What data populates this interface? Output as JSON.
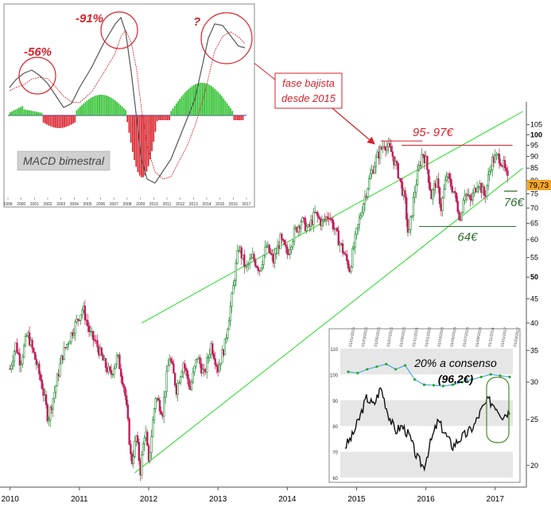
{
  "chart_data": [
    {
      "type": "candlestick",
      "title": "",
      "x_ticks": [
        "2010",
        "2011",
        "2012",
        "2013",
        "2014",
        "2015",
        "2016",
        "2017"
      ],
      "y_ticks": [
        "105",
        "100",
        "95",
        "90",
        "85",
        "80",
        "75",
        "70",
        "65",
        "60",
        "55",
        "50",
        "45",
        "40",
        "35",
        "30",
        "25",
        "20"
      ],
      "y_scale": "log",
      "ylim": [
        19,
        112
      ],
      "last_price_label": "79,73",
      "price_path": [
        [
          2010.0,
          32
        ],
        [
          2010.08,
          36
        ],
        [
          2010.15,
          33
        ],
        [
          2010.25,
          38
        ],
        [
          2010.35,
          34
        ],
        [
          2010.45,
          30
        ],
        [
          2010.55,
          25
        ],
        [
          2010.65,
          29
        ],
        [
          2010.75,
          34
        ],
        [
          2010.85,
          37
        ],
        [
          2010.95,
          40
        ],
        [
          2011.05,
          43
        ],
        [
          2011.15,
          38
        ],
        [
          2011.25,
          36
        ],
        [
          2011.35,
          33
        ],
        [
          2011.45,
          31
        ],
        [
          2011.55,
          34
        ],
        [
          2011.65,
          29
        ],
        [
          2011.75,
          20
        ],
        [
          2011.82,
          23
        ],
        [
          2011.88,
          19.5
        ],
        [
          2011.95,
          24
        ],
        [
          2012.0,
          20
        ],
        [
          2012.1,
          28
        ],
        [
          2012.2,
          26
        ],
        [
          2012.3,
          34
        ],
        [
          2012.4,
          29
        ],
        [
          2012.5,
          33
        ],
        [
          2012.6,
          29
        ],
        [
          2012.7,
          34
        ],
        [
          2012.8,
          31
        ],
        [
          2012.9,
          36
        ],
        [
          2013.0,
          32
        ],
        [
          2013.1,
          36
        ],
        [
          2013.2,
          45
        ],
        [
          2013.3,
          58
        ],
        [
          2013.4,
          52
        ],
        [
          2013.5,
          55
        ],
        [
          2013.6,
          52
        ],
        [
          2013.7,
          58
        ],
        [
          2013.8,
          54
        ],
        [
          2013.9,
          60
        ],
        [
          2014.0,
          56
        ],
        [
          2014.1,
          62
        ],
        [
          2014.2,
          66
        ],
        [
          2014.3,
          63
        ],
        [
          2014.4,
          68
        ],
        [
          2014.5,
          65
        ],
        [
          2014.6,
          68
        ],
        [
          2014.7,
          62
        ],
        [
          2014.8,
          57
        ],
        [
          2014.9,
          52
        ],
        [
          2015.0,
          62
        ],
        [
          2015.1,
          72
        ],
        [
          2015.2,
          82
        ],
        [
          2015.3,
          90
        ],
        [
          2015.4,
          96
        ],
        [
          2015.5,
          92
        ],
        [
          2015.6,
          83
        ],
        [
          2015.7,
          72
        ],
        [
          2015.75,
          60
        ],
        [
          2015.85,
          78
        ],
        [
          2015.95,
          92
        ],
        [
          2016.0,
          88
        ],
        [
          2016.08,
          74
        ],
        [
          2016.15,
          80
        ],
        [
          2016.22,
          70
        ],
        [
          2016.3,
          82
        ],
        [
          2016.4,
          76
        ],
        [
          2016.5,
          66
        ],
        [
          2016.55,
          76
        ],
        [
          2016.65,
          72
        ],
        [
          2016.75,
          80
        ],
        [
          2016.85,
          74
        ],
        [
          2016.95,
          88
        ],
        [
          2017.05,
          90
        ],
        [
          2017.12,
          86
        ],
        [
          2017.18,
          80
        ]
      ],
      "channel_lines": [
        {
          "name": "upper",
          "from": [
            2011.9,
            40
          ],
          "to": [
            2017.4,
            112
          ]
        },
        {
          "name": "lower",
          "from": [
            2011.8,
            19.3
          ],
          "to": [
            2017.4,
            85
          ]
        }
      ],
      "horizontal_levels": [
        {
          "label": "95- 97€",
          "values": [
            97,
            95
          ],
          "color": "#d9202a"
        },
        {
          "label": "76€",
          "value": 76,
          "color": "#2e6b2e"
        },
        {
          "label": "64€",
          "value": 64,
          "color": "#2e6b2e"
        }
      ],
      "annotation": "fase bajista\ndesde 2015",
      "inset_macd": {
        "title": "MACD bimestral",
        "x_ticks": [
          "1999",
          "2000",
          "2001",
          "2002",
          "2003",
          "2004",
          "2005",
          "2006",
          "2007",
          "2008",
          "2009",
          "2010",
          "2011",
          "2012",
          "2013",
          "2014",
          "2015",
          "2016",
          "2017"
        ],
        "annotations": [
          "-56%",
          "-91%",
          "?"
        ]
      },
      "inset_consensus": {
        "title": "20% a consenso",
        "subtitle": "(96,2€)",
        "y_ticks": [
          "110",
          "100",
          "90",
          "80",
          "70",
          "60"
        ],
        "x_ticks": [
          "01/01/2015",
          "01/03/2015",
          "01/05/2015",
          "01/07/2015",
          "01/09/2015",
          "01/11/2015",
          "01/01/2016",
          "01/03/2016",
          "01/05/2016",
          "01/07/2016",
          "01/09/2016",
          "01/11/2016",
          "01/01/2017",
          "01/03/2017"
        ],
        "series": [
          {
            "color": "#2b9ce0",
            "values": [
              101,
              100.5,
              102,
              103,
              104,
              102,
              103.5,
              98,
              96,
              95.8,
              95.5,
              96,
              97,
              98,
              99,
              100,
              99.5,
              99
            ]
          },
          {
            "color": "#111111",
            "values": [
              72,
              76,
              83,
              91,
              88,
              95,
              85,
              78,
              80,
              76,
              68,
              64,
              74,
              82,
              77,
              72,
              75,
              77,
              80,
              86,
              90,
              88,
              84,
              86
            ]
          }
        ]
      }
    }
  ]
}
